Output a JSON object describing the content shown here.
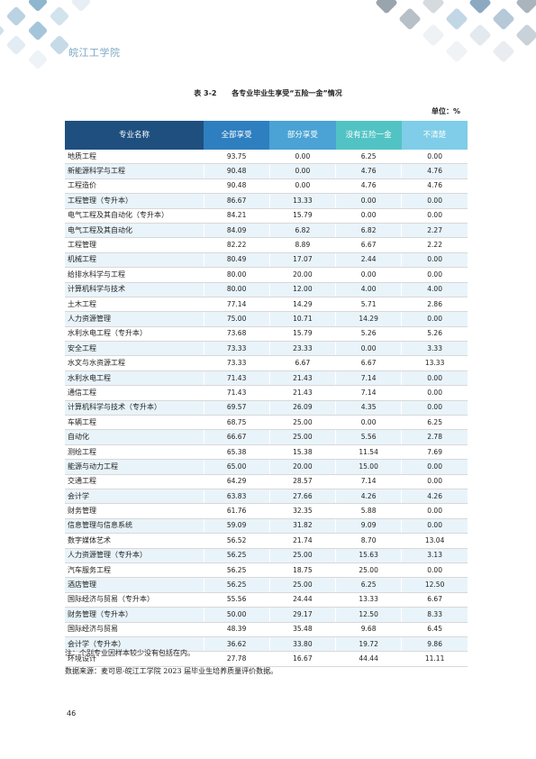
{
  "header": {
    "school_logo_text": "皖江工学院"
  },
  "caption": {
    "number": "表 3-2",
    "title": "各专业毕业生享受“五险一金”情况"
  },
  "unit": "单位：%",
  "table": {
    "columns": [
      "专业名称",
      "全部享受",
      "部分享受",
      "没有五险一金",
      "不清楚"
    ],
    "rows": [
      [
        "地质工程",
        "93.75",
        "0.00",
        "6.25",
        "0.00"
      ],
      [
        "新能源科学与工程",
        "90.48",
        "0.00",
        "4.76",
        "4.76"
      ],
      [
        "工程造价",
        "90.48",
        "0.00",
        "4.76",
        "4.76"
      ],
      [
        "工程管理（专升本）",
        "86.67",
        "13.33",
        "0.00",
        "0.00"
      ],
      [
        "电气工程及其自动化（专升本）",
        "84.21",
        "15.79",
        "0.00",
        "0.00"
      ],
      [
        "电气工程及其自动化",
        "84.09",
        "6.82",
        "6.82",
        "2.27"
      ],
      [
        "工程管理",
        "82.22",
        "8.89",
        "6.67",
        "2.22"
      ],
      [
        "机械工程",
        "80.49",
        "17.07",
        "2.44",
        "0.00"
      ],
      [
        "给排水科学与工程",
        "80.00",
        "20.00",
        "0.00",
        "0.00"
      ],
      [
        "计算机科学与技术",
        "80.00",
        "12.00",
        "4.00",
        "4.00"
      ],
      [
        "土木工程",
        "77.14",
        "14.29",
        "5.71",
        "2.86"
      ],
      [
        "人力资源管理",
        "75.00",
        "10.71",
        "14.29",
        "0.00"
      ],
      [
        "水利水电工程（专升本）",
        "73.68",
        "15.79",
        "5.26",
        "5.26"
      ],
      [
        "安全工程",
        "73.33",
        "23.33",
        "0.00",
        "3.33"
      ],
      [
        "水文与水资源工程",
        "73.33",
        "6.67",
        "6.67",
        "13.33"
      ],
      [
        "水利水电工程",
        "71.43",
        "21.43",
        "7.14",
        "0.00"
      ],
      [
        "通信工程",
        "71.43",
        "21.43",
        "7.14",
        "0.00"
      ],
      [
        "计算机科学与技术（专升本）",
        "69.57",
        "26.09",
        "4.35",
        "0.00"
      ],
      [
        "车辆工程",
        "68.75",
        "25.00",
        "0.00",
        "6.25"
      ],
      [
        "自动化",
        "66.67",
        "25.00",
        "5.56",
        "2.78"
      ],
      [
        "测绘工程",
        "65.38",
        "15.38",
        "11.54",
        "7.69"
      ],
      [
        "能源与动力工程",
        "65.00",
        "20.00",
        "15.00",
        "0.00"
      ],
      [
        "交通工程",
        "64.29",
        "28.57",
        "7.14",
        "0.00"
      ],
      [
        "会计学",
        "63.83",
        "27.66",
        "4.26",
        "4.26"
      ],
      [
        "财务管理",
        "61.76",
        "32.35",
        "5.88",
        "0.00"
      ],
      [
        "信息管理与信息系统",
        "59.09",
        "31.82",
        "9.09",
        "0.00"
      ],
      [
        "数字媒体艺术",
        "56.52",
        "21.74",
        "8.70",
        "13.04"
      ],
      [
        "人力资源管理（专升本）",
        "56.25",
        "25.00",
        "15.63",
        "3.13"
      ],
      [
        "汽车服务工程",
        "56.25",
        "18.75",
        "25.00",
        "0.00"
      ],
      [
        "酒店管理",
        "56.25",
        "25.00",
        "6.25",
        "12.50"
      ],
      [
        "国际经济与贸易（专升本）",
        "55.56",
        "24.44",
        "13.33",
        "6.67"
      ],
      [
        "财务管理（专升本）",
        "50.00",
        "29.17",
        "12.50",
        "8.33"
      ],
      [
        "国际经济与贸易",
        "48.39",
        "35.48",
        "9.68",
        "6.45"
      ],
      [
        "会计学（专升本）",
        "36.62",
        "33.80",
        "19.72",
        "9.86"
      ],
      [
        "环境设计",
        "27.78",
        "16.67",
        "44.44",
        "11.11"
      ]
    ]
  },
  "note": "注：个别专业因样本较少没有包括在内。",
  "source": "数据来源：麦可思-皖江工学院 2023 届毕业生培养质量评价数据。",
  "page_number": "46"
}
